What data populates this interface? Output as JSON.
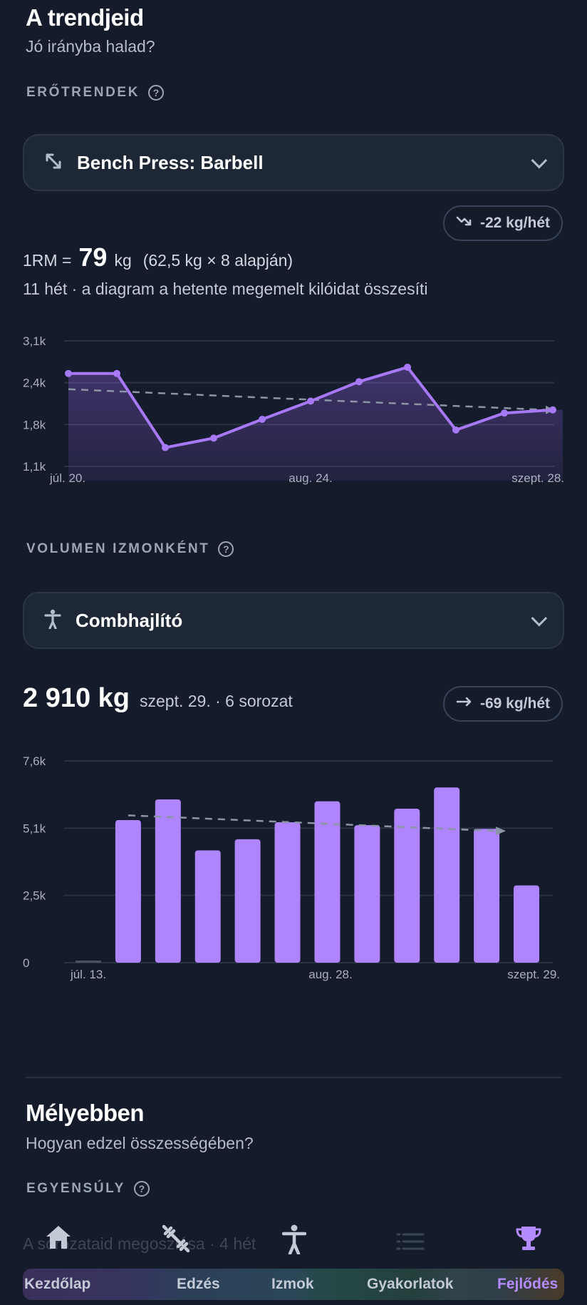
{
  "header": {
    "title": "A trendjeid",
    "subtitle": "Jó irányba halad?"
  },
  "strength": {
    "section_label": "ERŐTRENDEK",
    "exercise": "Bench Press: Barbell",
    "trend": "-22 kg/hét",
    "onerm_prefix": "1RM =",
    "onerm_value": "79",
    "onerm_unit": "kg",
    "onerm_basis": "(62,5 kg × 8 alapján)",
    "note": "11 hét · a diagram a hetente megemelt kilóidat összesíti"
  },
  "volume": {
    "section_label": "VOLUMEN IZMONKÉNT",
    "muscle": "Combhajlító",
    "total": "2 910 kg",
    "detail": "szept. 29. · 6 sorozat",
    "trend": "-69 kg/hét"
  },
  "deeper": {
    "title": "Mélyebben",
    "subtitle": "Hogyan edzel összességében?",
    "section_label": "EGYENSÚLY",
    "faded_text": "A sorozataid megoszlása · 4 hét"
  },
  "nav": {
    "items": [
      {
        "label": "Kezdőlap",
        "icon": "home-icon"
      },
      {
        "label": "Edzés",
        "icon": "dumbbell-icon"
      },
      {
        "label": "Izmok",
        "icon": "person-icon"
      },
      {
        "label": "Gyakorlatok",
        "icon": "list-icon"
      },
      {
        "label": "Fejlődés",
        "icon": "trophy-icon"
      }
    ],
    "active": "Fejlődés",
    "accent": "#b48cff"
  },
  "chart_data": [
    {
      "type": "line",
      "x_tick_labels": [
        "júl. 20.",
        "aug. 24.",
        "szept. 28."
      ],
      "y_tick_labels": [
        "1,1k",
        "1,8k",
        "2,4k",
        "3,1k"
      ],
      "ylim": [
        1100,
        3100
      ],
      "series": [
        {
          "values": [
            2580,
            2580,
            1400,
            1550,
            1850,
            2140,
            2450,
            2680,
            1680,
            1950,
            2000
          ]
        }
      ],
      "trendline": {
        "start": 2330,
        "end": 2000
      },
      "color": "#a879f7"
    },
    {
      "type": "bar",
      "x_tick_labels": [
        "júl. 13.",
        "aug. 28.",
        "szept. 29."
      ],
      "y_tick_labels": [
        "0",
        "2,5k",
        "5,1k",
        "7,6k"
      ],
      "ylim": [
        0,
        7600
      ],
      "values": [
        50,
        5370,
        6150,
        4230,
        4650,
        5290,
        6080,
        5180,
        5800,
        6600,
        5040,
        2910
      ],
      "trendline": {
        "start": 5550,
        "end": 4960
      },
      "color": "#ae84ff"
    }
  ]
}
